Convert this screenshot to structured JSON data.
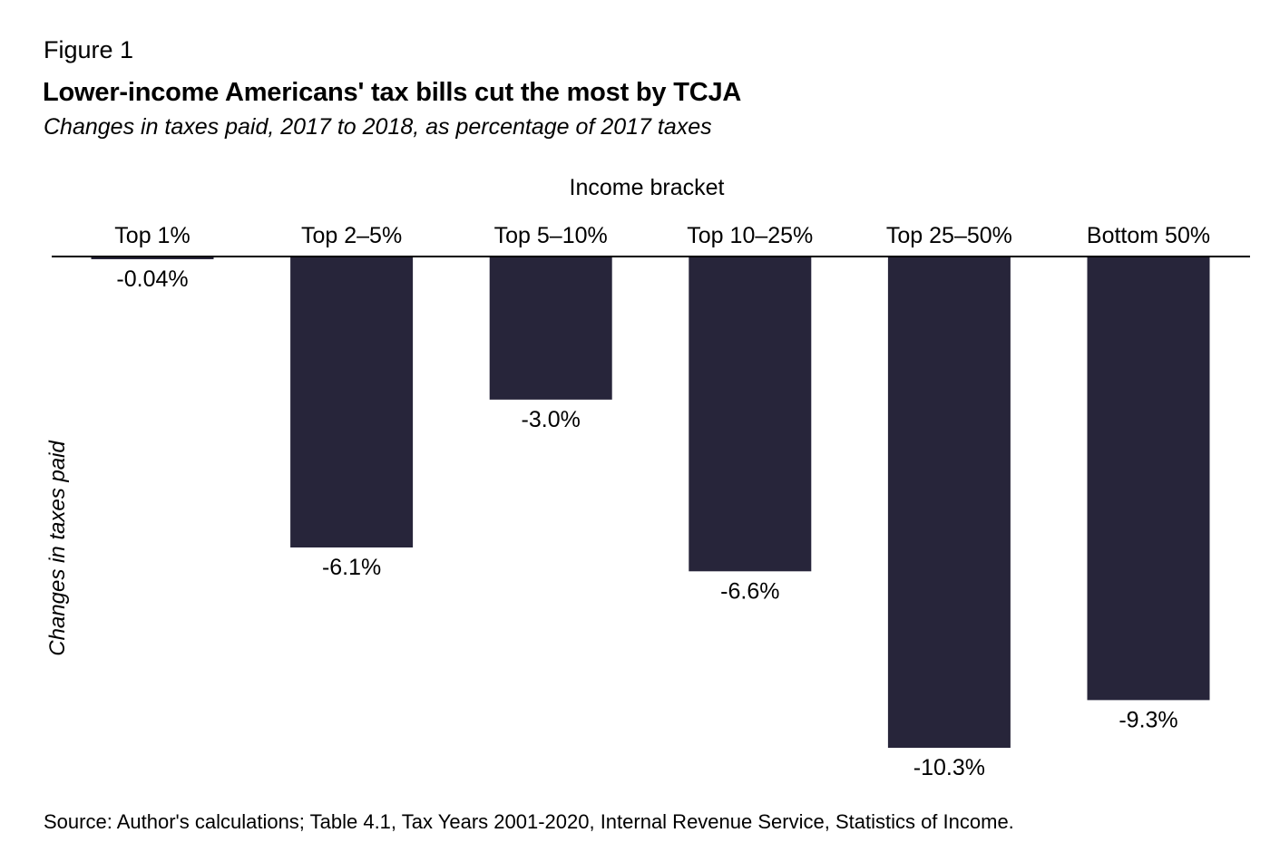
{
  "figure_label": "Figure 1",
  "title": "Lower-income Americans' tax bills cut the most by TCJA",
  "subtitle": "Changes in taxes paid, 2017 to 2018, as percentage of 2017 taxes",
  "source": "Source: Author's calculations; Table 4.1, Tax Years 2001-2020, Internal Revenue Service, Statistics of Income.",
  "colors": {
    "bar": "#27253a",
    "axis": "#000000"
  },
  "chart_data": {
    "type": "bar",
    "xlabel": "Income bracket",
    "ylabel": "Changes in taxes paid",
    "categories": [
      "Top 1%",
      "Top 2–5%",
      "Top 5–10%",
      "Top 10–25%",
      "Top 25–50%",
      "Bottom 50%"
    ],
    "values": [
      -0.04,
      -6.1,
      -3.0,
      -6.6,
      -10.3,
      -9.3
    ],
    "data_labels": [
      "-0.04%",
      "-6.1%",
      "-3.0%",
      "-6.6%",
      "-10.3%",
      "-9.3%"
    ],
    "ylim": [
      -10.3,
      0
    ],
    "grid": false,
    "legend": "none"
  }
}
